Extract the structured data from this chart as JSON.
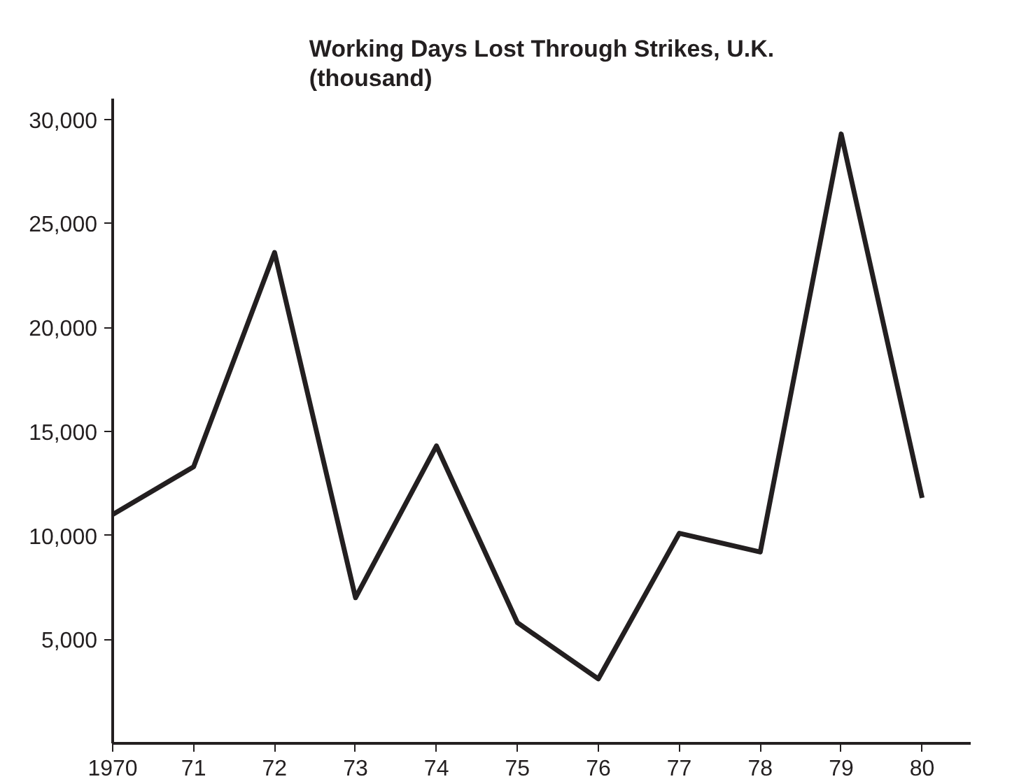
{
  "chart_data": {
    "type": "line",
    "title": "Working Days Lost Through Strikes, U.K.\n(thousand)",
    "x": [
      1970,
      1971,
      1972,
      1973,
      1974,
      1975,
      1976,
      1977,
      1978,
      1979,
      1980
    ],
    "series": [
      {
        "color": "#231f20",
        "values": [
          11000,
          13300,
          23600,
          7000,
          14300,
          5800,
          3100,
          10100,
          9200,
          29300,
          11800
        ]
      }
    ],
    "xlim": [
      1970,
      1980.6
    ],
    "xticks": [
      1970,
      {
        "value": 1971,
        "label": "71"
      },
      {
        "value": 1972,
        "label": "72"
      },
      {
        "value": 1973,
        "label": "73"
      },
      {
        "value": 1974,
        "label": "74"
      },
      {
        "value": 1975,
        "label": "75"
      },
      {
        "value": 1976,
        "label": "76"
      },
      {
        "value": 1977,
        "label": "77"
      },
      {
        "value": 1978,
        "label": "78"
      },
      {
        "value": 1979,
        "label": "79"
      },
      {
        "value": 1980,
        "label": "80"
      }
    ],
    "ylim": [
      0,
      31000
    ],
    "yticks": [
      {
        "value": 5000,
        "label": "5,000"
      },
      {
        "value": 10000,
        "label": "10,000"
      },
      {
        "value": 15000,
        "label": "15,000"
      },
      {
        "value": 20000,
        "label": "20,000"
      },
      {
        "value": 25000,
        "label": "25,000"
      },
      {
        "value": 30000,
        "label": "30,000"
      }
    ],
    "grid": false,
    "marker": "none",
    "line_style": "solid"
  }
}
